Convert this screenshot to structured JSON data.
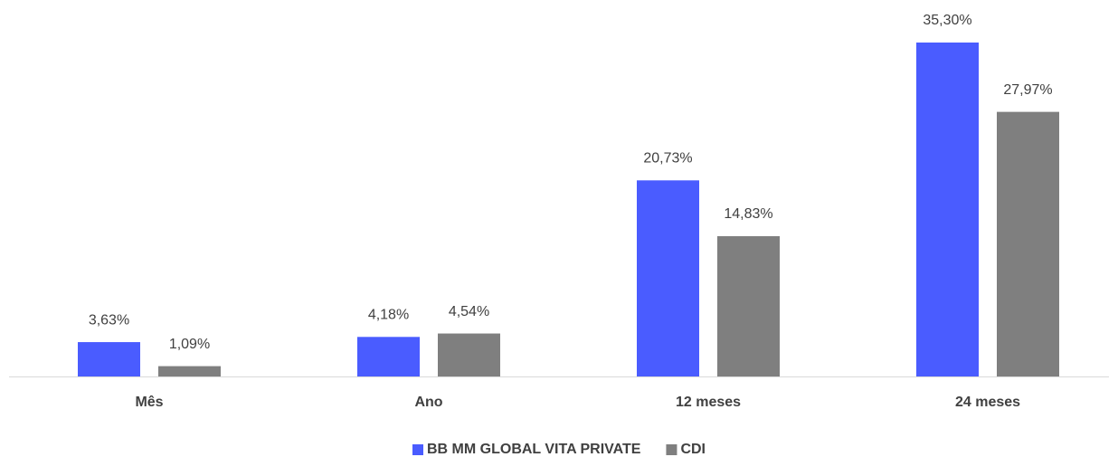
{
  "chart_data": {
    "type": "bar",
    "categories": [
      "Mês",
      "Ano",
      "12 meses",
      "24 meses"
    ],
    "series": [
      {
        "name": "BB MM GLOBAL VITA PRIVATE",
        "color": "#4a5cff",
        "values": [
          3.63,
          4.18,
          20.73,
          35.3
        ],
        "value_labels": [
          "3,63%",
          "4,18%",
          "20,73%",
          "35,30%"
        ]
      },
      {
        "name": "CDI",
        "color": "#7f7f7f",
        "values": [
          1.09,
          4.54,
          14.83,
          27.97
        ],
        "value_labels": [
          "1,09%",
          "4,54%",
          "14,83%",
          "27,97%"
        ]
      }
    ],
    "legend": "bottom"
  }
}
